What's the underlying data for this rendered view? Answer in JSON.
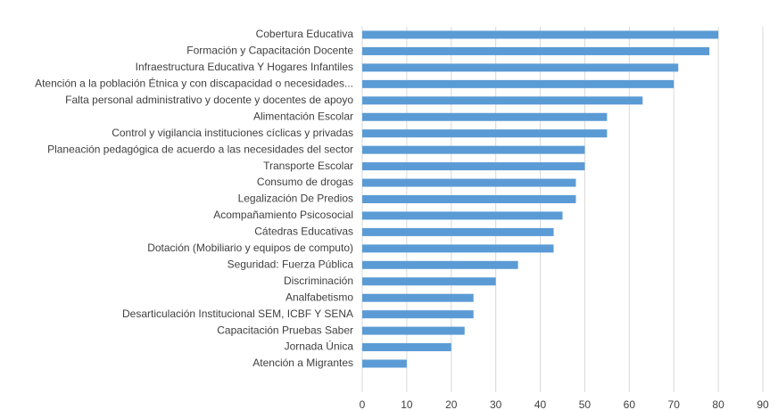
{
  "chart_data": {
    "type": "bar",
    "orientation": "horizontal",
    "categories": [
      "Cobertura Educativa",
      "Formación y Capacitación Docente",
      "Infraestructura Educativa Y Hogares Infantiles",
      "Atención a la población Étnica y con discapacidad o necesidades...",
      "Falta personal administrativo y docente y docentes de apoyo",
      "Alimentación Escolar",
      "Control y vigilancia instituciones cíclicas y privadas",
      "Planeación pedagógica de acuerdo a las necesidades del sector",
      "Transporte Escolar",
      "Consumo de drogas",
      "Legalización De Predios",
      "Acompañamiento Psicosocial",
      "Cátedras Educativas",
      "Dotación (Mobiliario y equipos de computo)",
      "Seguridad: Fuerza Pública",
      "Discriminación",
      "Analfabetismo",
      "Desarticulación Institucional SEM, ICBF Y SENA",
      "Capacitación Pruebas Saber",
      "Jornada Única",
      "Atención a Migrantes"
    ],
    "values": [
      80,
      78,
      71,
      70,
      63,
      55,
      55,
      50,
      50,
      48,
      48,
      45,
      43,
      43,
      35,
      30,
      25,
      25,
      23,
      20,
      10
    ],
    "color": "#5b9bd5",
    "xlim": [
      0,
      90
    ],
    "xticks": [
      0,
      10,
      20,
      30,
      40,
      50,
      60,
      70,
      80,
      90
    ],
    "grid": true
  }
}
